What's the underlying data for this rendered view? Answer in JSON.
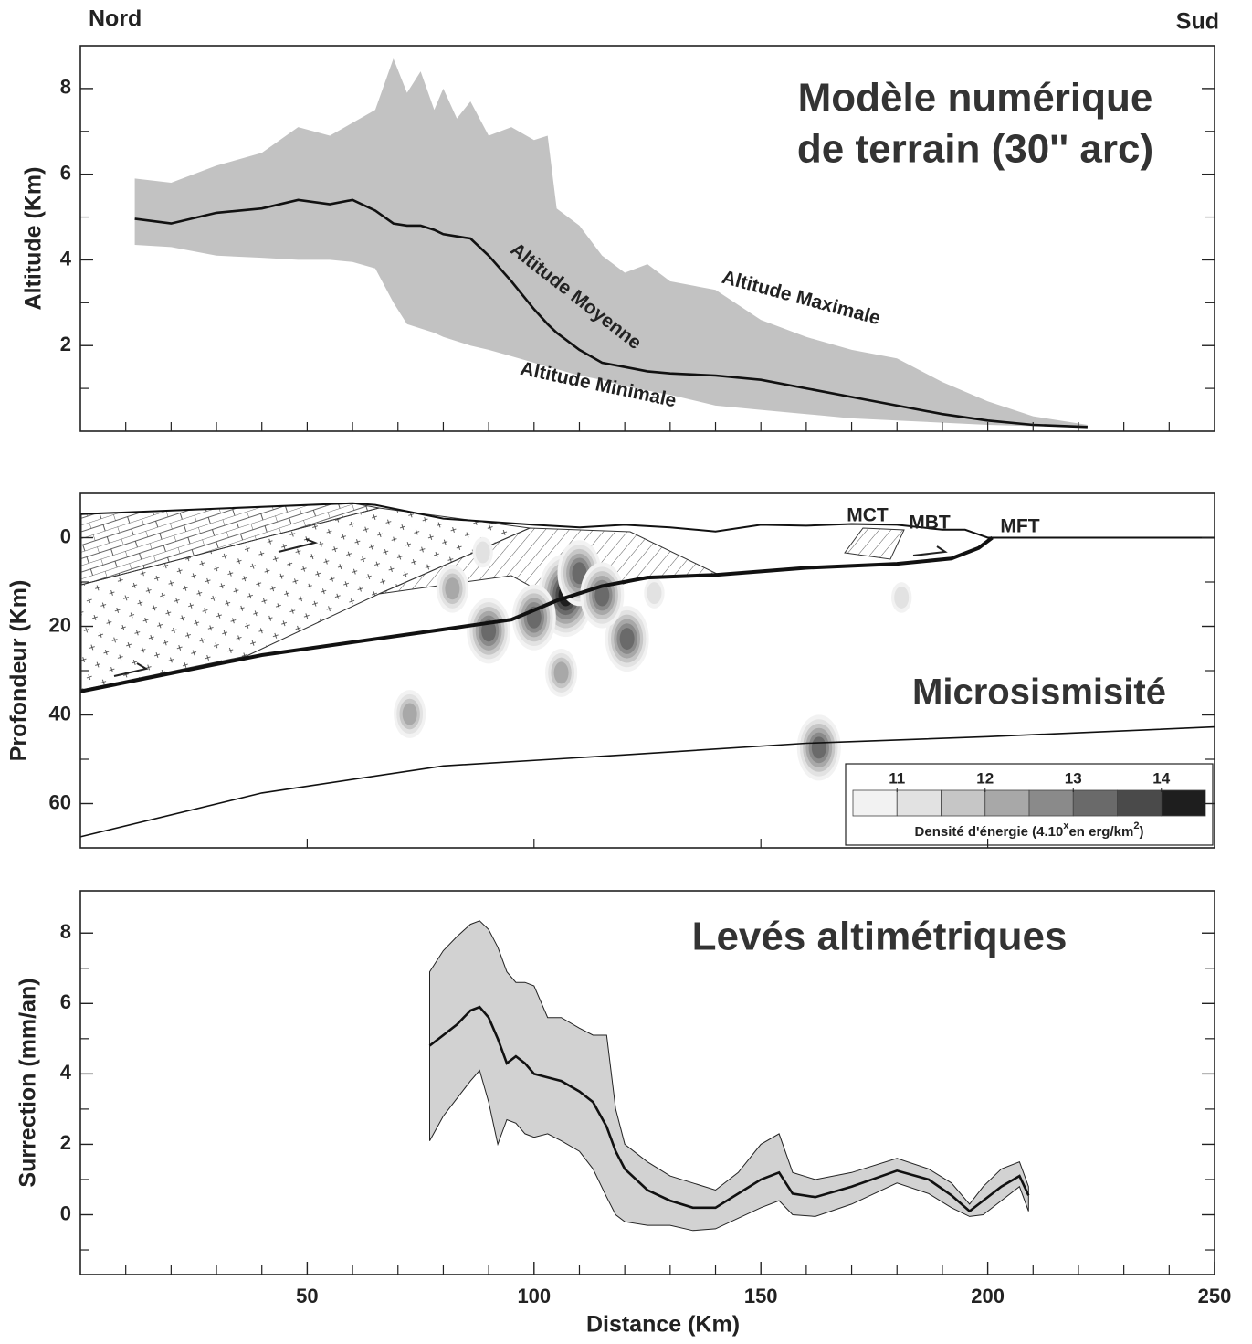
{
  "header": {
    "left": "Nord",
    "right": "Sud"
  },
  "chart_data": [
    {
      "type": "band",
      "title_lines": [
        "Modèle numérique",
        "de terrain (30'' arc)"
      ],
      "ylabel": "Altitude (Km)",
      "xlim": [
        0,
        250
      ],
      "ylim": [
        0,
        9
      ],
      "yticks": [
        2,
        4,
        6,
        8
      ],
      "yminorticks": [
        1,
        3,
        5,
        7
      ],
      "xminorticks": [
        10,
        20,
        30,
        40,
        50,
        60,
        70,
        80,
        90,
        100,
        110,
        120,
        130,
        140,
        150,
        160,
        170,
        180,
        190,
        200,
        210,
        220,
        230,
        240
      ],
      "x": [
        12,
        20,
        30,
        40,
        48,
        55,
        60,
        65,
        69,
        72,
        75,
        78,
        80,
        83,
        86,
        90,
        95,
        100,
        103,
        105,
        110,
        115,
        120,
        125,
        130,
        140,
        150,
        160,
        170,
        180,
        190,
        200,
        210,
        222
      ],
      "series": [
        {
          "name": "Altitude Maximale",
          "values": [
            5.9,
            5.8,
            6.2,
            6.5,
            7.1,
            6.9,
            7.2,
            7.5,
            8.7,
            7.9,
            8.4,
            7.5,
            8.0,
            7.3,
            7.7,
            6.9,
            7.1,
            6.8,
            6.9,
            5.2,
            4.8,
            4.1,
            3.7,
            3.9,
            3.5,
            3.3,
            2.6,
            2.2,
            1.9,
            1.7,
            1.15,
            0.7,
            0.35,
            0.15
          ]
        },
        {
          "name": "Altitude Moyenne",
          "values": [
            4.96,
            4.85,
            5.1,
            5.2,
            5.4,
            5.3,
            5.4,
            5.15,
            4.85,
            4.8,
            4.8,
            4.7,
            4.6,
            4.55,
            4.5,
            4.1,
            3.5,
            2.85,
            2.5,
            2.3,
            1.9,
            1.6,
            1.5,
            1.4,
            1.35,
            1.3,
            1.2,
            1.0,
            0.8,
            0.6,
            0.4,
            0.25,
            0.15,
            0.1
          ]
        },
        {
          "name": "Altitude Minimale",
          "values": [
            4.35,
            4.3,
            4.1,
            4.05,
            4.0,
            4.0,
            3.95,
            3.8,
            3.0,
            2.5,
            2.4,
            2.3,
            2.2,
            2.1,
            2.0,
            1.9,
            1.75,
            1.6,
            1.5,
            1.45,
            1.3,
            1.2,
            1.05,
            0.95,
            0.85,
            0.6,
            0.5,
            0.4,
            0.3,
            0.25,
            0.2,
            0.15,
            0.12,
            0.1
          ]
        }
      ]
    },
    {
      "type": "section",
      "title": "Microsismisité",
      "ylabel": "Profondeur (Km)",
      "xlim": [
        0,
        250
      ],
      "ylim": [
        -10,
        70
      ],
      "y_inverted": true,
      "yticks": [
        0,
        20,
        40,
        60
      ],
      "yminorticks": [
        10,
        30,
        50
      ],
      "xminorticks": [
        50,
        100,
        150,
        200
      ],
      "fault_labels": [
        "MCT",
        "MBT",
        "MFT"
      ],
      "lines": [
        {
          "x": [
            0,
            60,
            65,
            80,
            100,
            110,
            120,
            130,
            140,
            150,
            160,
            170,
            180,
            190,
            195,
            200,
            250
          ],
          "values": [
            -5.3,
            -7.8,
            -7.4,
            -4.3,
            -2.9,
            -2.3,
            -2.9,
            -2.3,
            -1.4,
            -2.9,
            -2.7,
            -3.1,
            -2.9,
            -1.8,
            -1.8,
            0,
            0
          ]
        },
        {
          "x": [
            0,
            40,
            80,
            95,
            105,
            115,
            125,
            140,
            160,
            180,
            192,
            198,
            201
          ],
          "values": [
            34.7,
            26.5,
            20.7,
            18.5,
            14.2,
            10.9,
            9.0,
            8.4,
            6.8,
            5.9,
            4.7,
            2.3,
            0
          ]
        },
        {
          "x": [
            0,
            40,
            80,
            120,
            160,
            200,
            250
          ],
          "values": [
            67.5,
            57.6,
            51.5,
            49,
            46.4,
            44.9,
            42.7
          ]
        }
      ],
      "events": {
        "x": [
          107,
          110,
          90,
          120.5,
          106,
          82,
          126.5,
          88.7,
          72.6,
          162.8,
          181,
          115,
          100
        ],
        "values": [
          13,
          8,
          21,
          22.8,
          30.5,
          11.5,
          12.5,
          3.3,
          39.8,
          47.4,
          13.5,
          13,
          18
        ],
        "levels": [
          14,
          13,
          13,
          13,
          12,
          12,
          11,
          11,
          12,
          13,
          11,
          13,
          13
        ]
      },
      "colorbar": {
        "bins": [
          10.5,
          11,
          11.5,
          12,
          12.5,
          13,
          13.5,
          14,
          14.5
        ],
        "colors": [
          "#f2f2f2",
          "#e2e2e2",
          "#c6c6c6",
          "#a8a8a8",
          "#8a8a8a",
          "#6a6a6a",
          "#4a4a4a",
          "#1e1e1e"
        ],
        "ticks": [
          11,
          12,
          13,
          14
        ],
        "label_parts": [
          "Densité d'énergie (4.10",
          "x",
          "en erg/km",
          "2",
          ")"
        ]
      }
    },
    {
      "type": "band",
      "title": "Levés altimétriques",
      "ylabel": "Surrection (mm/an)",
      "xlabel": "Distance (Km)",
      "xlim": [
        0,
        250
      ],
      "ylim": [
        -1.7,
        9.2
      ],
      "yticks": [
        0,
        2,
        4,
        6,
        8
      ],
      "yminorticks": [
        -1,
        1,
        3,
        5,
        7
      ],
      "xticks": [
        50,
        100,
        150,
        200,
        250
      ],
      "xminorticks": [
        10,
        20,
        30,
        40,
        60,
        70,
        80,
        90,
        110,
        120,
        130,
        140,
        160,
        170,
        180,
        190,
        210,
        220,
        230,
        240
      ],
      "x": [
        77,
        80,
        83,
        86,
        88,
        90,
        92,
        94,
        96,
        98,
        100,
        103,
        106,
        110,
        113,
        116,
        118,
        120,
        125,
        130,
        135,
        140,
        145,
        150,
        154,
        157,
        162,
        170,
        180,
        187,
        192,
        196,
        199,
        203,
        207,
        209
      ],
      "values": [
        4.8,
        5.1,
        5.4,
        5.8,
        5.9,
        5.6,
        5.0,
        4.3,
        4.5,
        4.3,
        4.0,
        3.9,
        3.8,
        3.5,
        3.2,
        2.5,
        1.8,
        1.3,
        0.7,
        0.4,
        0.2,
        0.2,
        0.6,
        1.0,
        1.2,
        0.6,
        0.5,
        0.8,
        1.25,
        1.0,
        0.55,
        0.1,
        0.4,
        0.8,
        1.1,
        0.55
      ],
      "upper": [
        6.9,
        7.5,
        7.9,
        8.25,
        8.35,
        8.1,
        7.6,
        6.9,
        6.6,
        6.6,
        6.5,
        5.6,
        5.6,
        5.3,
        5.1,
        5.1,
        3.0,
        2.0,
        1.5,
        1.1,
        0.9,
        0.7,
        1.2,
        2.0,
        2.3,
        1.2,
        1.0,
        1.2,
        1.6,
        1.3,
        0.9,
        0.3,
        0.8,
        1.3,
        1.5,
        0.8
      ],
      "lower": [
        2.1,
        2.8,
        3.3,
        3.8,
        4.1,
        3.2,
        2.0,
        2.7,
        2.6,
        2.3,
        2.2,
        2.3,
        2.1,
        1.8,
        1.3,
        0.5,
        0.0,
        -0.2,
        -0.3,
        -0.3,
        -0.45,
        -0.4,
        -0.1,
        0.2,
        0.4,
        0.0,
        -0.05,
        0.3,
        0.9,
        0.6,
        0.2,
        -0.05,
        0.0,
        0.4,
        0.8,
        0.1
      ]
    }
  ]
}
